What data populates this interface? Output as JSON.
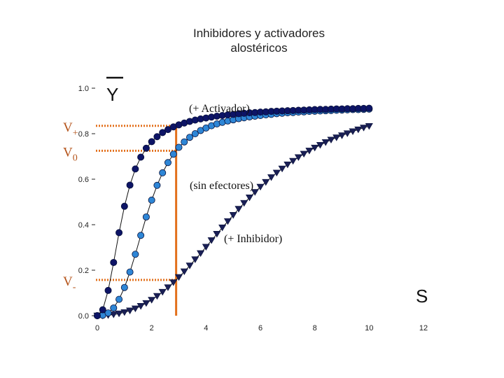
{
  "chart_data": {
    "type": "scatter",
    "title_line1": "Inhibidores y activadores",
    "title_line2": "alostéricos",
    "y_symbol": "Y",
    "x_symbol": "S",
    "xlim": [
      0,
      12
    ],
    "ylim": [
      0,
      1.0
    ],
    "x_ticks": [
      "0",
      "2",
      "4",
      "6",
      "8",
      "10",
      "12"
    ],
    "y_ticks": [
      "0.0",
      "0.2",
      "0.4",
      "0.6",
      "0.8",
      "1.0"
    ],
    "x": [
      0.0,
      0.2,
      0.4,
      0.6,
      0.8,
      1.0,
      1.2,
      1.4,
      1.6,
      1.8,
      2.0,
      2.2,
      2.4,
      2.6,
      2.8,
      3.0,
      3.2,
      3.4,
      3.6,
      3.8,
      4.0,
      4.2,
      4.4,
      4.6,
      4.8,
      5.0,
      5.2,
      5.4,
      5.6,
      5.8,
      6.0,
      6.2,
      6.4,
      6.6,
      6.8,
      7.0,
      7.2,
      7.4,
      7.6,
      7.8,
      8.0,
      8.2,
      8.4,
      8.6,
      8.8,
      9.0,
      9.2,
      9.4,
      9.6,
      9.8,
      10.0
    ],
    "series": [
      {
        "name": "(+ Activador)",
        "marker": "circle",
        "color": "#0d1466",
        "values": [
          0.0,
          0.026,
          0.111,
          0.234,
          0.365,
          0.481,
          0.574,
          0.645,
          0.697,
          0.736,
          0.765,
          0.787,
          0.805,
          0.818,
          0.83,
          0.839,
          0.847,
          0.854,
          0.86,
          0.865,
          0.869,
          0.873,
          0.877,
          0.88,
          0.883,
          0.885,
          0.888,
          0.89,
          0.892,
          0.893,
          0.895,
          0.896,
          0.898,
          0.899,
          0.9,
          0.901,
          0.902,
          0.903,
          0.904,
          0.905,
          0.906,
          0.907,
          0.907,
          0.908,
          0.909,
          0.909,
          0.91,
          0.91,
          0.911,
          0.911,
          0.912
        ]
      },
      {
        "name": "(sin efectores)",
        "marker": "circle",
        "color": "#2e86d6",
        "values": [
          0.0,
          0.002,
          0.012,
          0.034,
          0.072,
          0.124,
          0.192,
          0.27,
          0.353,
          0.434,
          0.508,
          0.573,
          0.628,
          0.673,
          0.71,
          0.74,
          0.764,
          0.784,
          0.8,
          0.814,
          0.825,
          0.835,
          0.843,
          0.85,
          0.856,
          0.861,
          0.866,
          0.87,
          0.874,
          0.877,
          0.88,
          0.883,
          0.885,
          0.888,
          0.89,
          0.892,
          0.893,
          0.895,
          0.896,
          0.898,
          0.899,
          0.9,
          0.901,
          0.902,
          0.903,
          0.904,
          0.905,
          0.906,
          0.906,
          0.907,
          0.908
        ]
      },
      {
        "name": "(+ Inhibidor)",
        "marker": "triangle-down",
        "color": "#1a1f55",
        "values": [
          0.0,
          0.0,
          0.002,
          0.005,
          0.009,
          0.015,
          0.022,
          0.031,
          0.042,
          0.055,
          0.069,
          0.086,
          0.104,
          0.124,
          0.146,
          0.169,
          0.194,
          0.22,
          0.247,
          0.274,
          0.302,
          0.331,
          0.359,
          0.387,
          0.415,
          0.442,
          0.469,
          0.495,
          0.519,
          0.543,
          0.566,
          0.587,
          0.608,
          0.628,
          0.646,
          0.664,
          0.68,
          0.696,
          0.711,
          0.725,
          0.738,
          0.75,
          0.762,
          0.773,
          0.783,
          0.792,
          0.801,
          0.81,
          0.818,
          0.826,
          0.833
        ]
      }
    ],
    "reference": {
      "x": 2.9,
      "labels": [
        "V+",
        "V0",
        "V-"
      ],
      "color": "#e3711d"
    },
    "annotations": [
      "(+ Activador)",
      "(sin efectores)",
      "(+ Inhibidor)"
    ],
    "grid": false
  }
}
